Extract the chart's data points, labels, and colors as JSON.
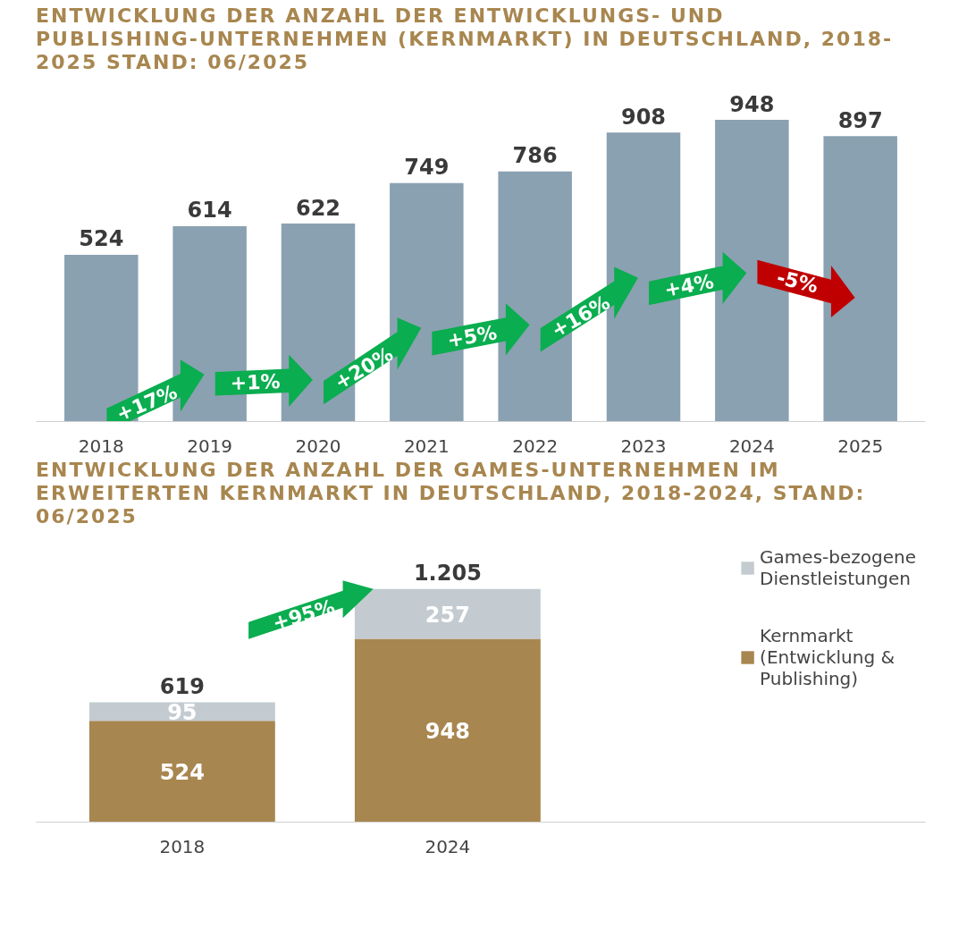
{
  "chart_data": [
    {
      "type": "bar",
      "title": "ENTWICKLUNG DER ANZAHL DER ENTWICKLUNGS- UND PUBLISHING-UNTERNEHMEN (KERNMARKT) IN DEUTSCHLAND, 2018-2025 STAND: 06/2025",
      "categories": [
        "2018",
        "2019",
        "2020",
        "2021",
        "2022",
        "2023",
        "2024",
        "2025"
      ],
      "values": [
        524,
        614,
        622,
        749,
        786,
        908,
        948,
        897
      ],
      "color": "#8aa1b1",
      "data_labels": true,
      "annotations": [
        "+17%",
        "+1%",
        "+20%",
        "+5%",
        "+16%",
        "+4%",
        "-5%"
      ]
    },
    {
      "type": "bar",
      "title": "ENTWICKLUNG DER ANZAHL DER GAMES-UNTERNEHMEN IM ERWEITERTEN KERNMARKT IN DEUTSCHLAND, 2018-2024, STAND: 06/2025",
      "categories": [
        "2018",
        "2024"
      ],
      "stacked": true,
      "data_labels": true,
      "legend": "right",
      "series": [
        {
          "name": "Kernmarkt (Entwicklung & Publishing)",
          "color": "#a8864f",
          "values": [
            524,
            948
          ]
        },
        {
          "name": "Games-bezogene Dienstleistungen",
          "color": "#c3cbd0",
          "values": [
            95,
            257
          ]
        }
      ],
      "totals": [
        "619",
        "1.205"
      ],
      "annotations": [
        "+95%"
      ]
    }
  ]
}
